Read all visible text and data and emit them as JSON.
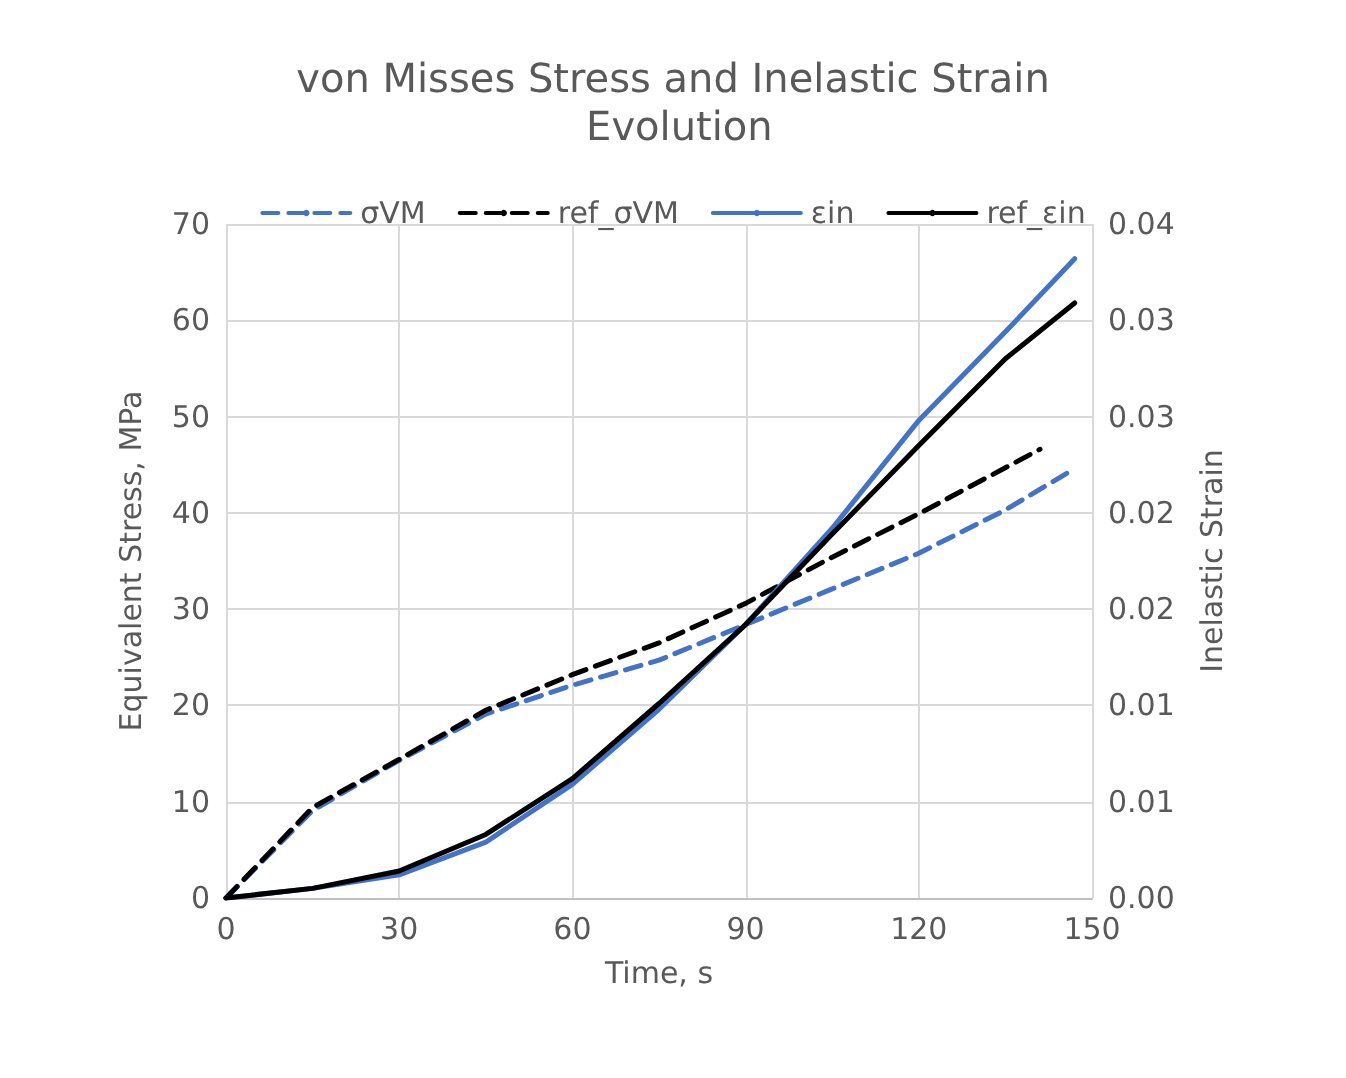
{
  "chart_data": {
    "type": "line",
    "title": "von Misses Stress and Inelastic Strain Evolution",
    "xlabel": "Time, s",
    "ylabel": "Equivalent Stress, MPa",
    "y2label": "Inelastic Strain",
    "xlim": [
      0,
      150
    ],
    "xticks": [
      0,
      30,
      60,
      90,
      120,
      150
    ],
    "ylim": [
      0,
      70
    ],
    "yticks": [
      0,
      10,
      20,
      30,
      40,
      50,
      60,
      70
    ],
    "y2lim": [
      0,
      0.035
    ],
    "y2ticks": [
      {
        "value": 0,
        "label": "0.00"
      },
      {
        "value": 0.005,
        "label": "0.01"
      },
      {
        "value": 0.01,
        "label": "0.01"
      },
      {
        "value": 0.015,
        "label": "0.02"
      },
      {
        "value": 0.02,
        "label": "0.02"
      },
      {
        "value": 0.025,
        "label": "0.03"
      },
      {
        "value": 0.03,
        "label": "0.03"
      },
      {
        "value": 0.035,
        "label": "0.04"
      }
    ],
    "grid": true,
    "legend": "top",
    "marker": "none",
    "series": [
      {
        "name": "σVM",
        "color": "#4472c4",
        "line_style": "dashed",
        "x": [
          0,
          15,
          30,
          45,
          60,
          75,
          90,
          105,
          120,
          135,
          147
        ],
        "values": [
          0,
          9.1,
          14.3,
          19.1,
          22.1,
          24.7,
          28.4,
          32.1,
          35.8,
          40.3,
          44.6
        ]
      },
      {
        "name": "ref_σVM",
        "color": "#000000",
        "line_style": "dashed",
        "x": [
          0,
          15,
          30,
          45,
          60,
          75,
          90,
          105,
          120,
          141
        ],
        "values": [
          0,
          9.4,
          14.4,
          19.5,
          23.2,
          26.5,
          30.6,
          35.4,
          39.9,
          46.6
        ]
      },
      {
        "name": "εin",
        "color": "#4472c4",
        "line_style": "solid",
        "axis": "y2",
        "x": [
          0,
          15,
          30,
          45,
          60,
          75,
          90,
          105,
          120,
          135,
          147
        ],
        "values": [
          0,
          0.0005,
          0.0012,
          0.0029,
          0.0059,
          0.0098,
          0.0142,
          0.0192,
          0.0248,
          0.0294,
          0.0332
        ]
      },
      {
        "name": "ref_εin",
        "color": "#000000",
        "line_style": "solid",
        "axis": "y2",
        "x": [
          0,
          15,
          30,
          45,
          60,
          75,
          90,
          105,
          120,
          135,
          147
        ],
        "values": [
          0,
          0.0005,
          0.0014,
          0.0033,
          0.0062,
          0.0101,
          0.0142,
          0.0189,
          0.0235,
          0.028,
          0.0309
        ]
      }
    ]
  }
}
